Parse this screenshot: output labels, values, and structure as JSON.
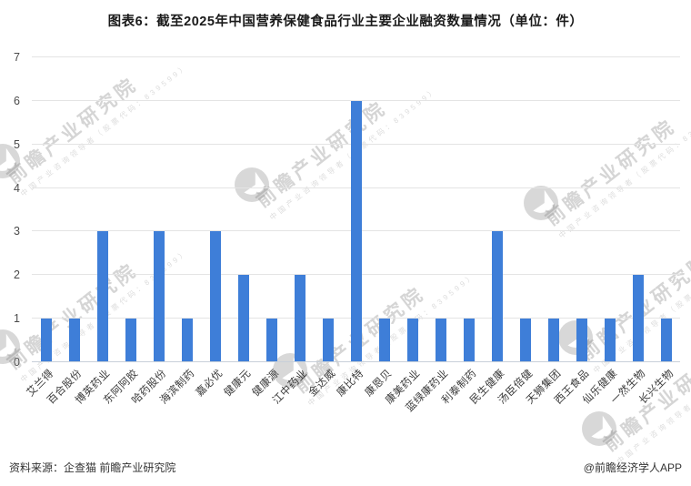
{
  "header": {
    "title": "图表6：截至2025年中国营养保健食品行业主要企业融资数量情况（单位：件）"
  },
  "chart_data": {
    "type": "bar",
    "title": "截至2025年中国营养保健食品行业主要企业融资数量情况",
    "unit": "件",
    "categories": [
      "艾兰得",
      "百合股份",
      "博英药业",
      "东阿阿胶",
      "哈药股份",
      "海滨制药",
      "嘉必优",
      "健康元",
      "健康源",
      "江中药业",
      "金达威",
      "康比特",
      "康恩贝",
      "康美药业",
      "蓝绿康药业",
      "利泰制药",
      "民生健康",
      "汤臣倍健",
      "天狮集团",
      "西王食品",
      "仙乐健康",
      "一然生物",
      "长兴生物"
    ],
    "values": [
      1,
      1,
      3,
      1,
      3,
      1,
      3,
      2,
      1,
      2,
      1,
      6,
      1,
      1,
      1,
      1,
      3,
      1,
      1,
      1,
      1,
      2,
      1
    ],
    "xlabel": "",
    "ylabel": "",
    "ylim": [
      0,
      7
    ],
    "yticks": [
      0,
      1,
      2,
      3,
      4,
      5,
      6,
      7
    ],
    "grid": true,
    "legend": "none",
    "bar_color": "#3E7ED8"
  },
  "footer": {
    "source": "资料来源：企查猫 前瞻产业研究院",
    "credit": "@前瞻经济学人APP"
  },
  "watermark": {
    "text": "前瞻产业研究院",
    "subtext": "中国产业咨询领导者（股票代码：839599）"
  }
}
